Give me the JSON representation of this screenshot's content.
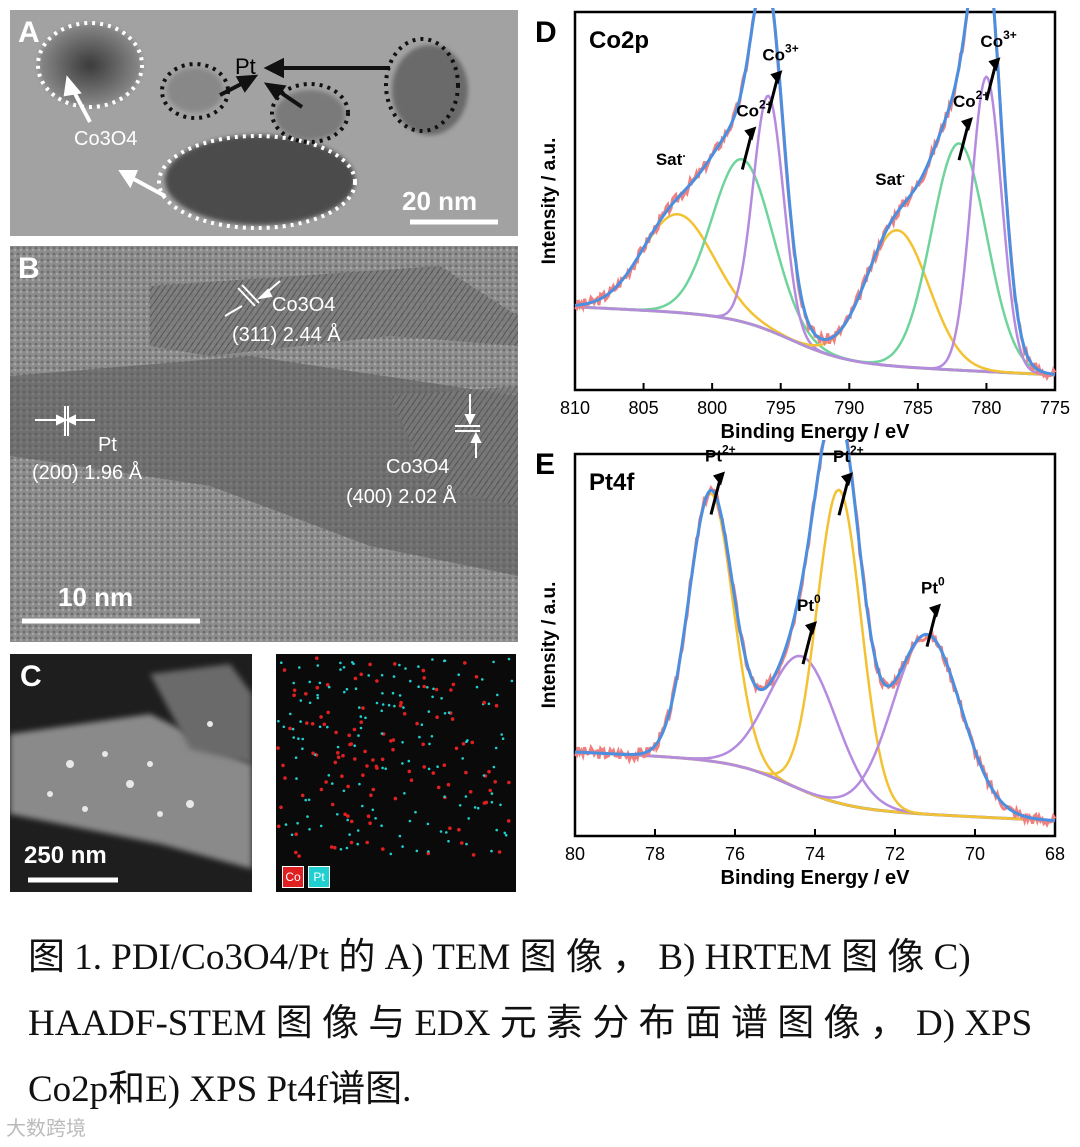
{
  "panels": {
    "A": {
      "letter": "A",
      "pt_label": "Pt",
      "co3o4_label": "Co3O4",
      "scale": "20 nm"
    },
    "B": {
      "letter": "B",
      "co3o4_a": "Co3O4",
      "co3o4_a_plane": "(311)  2.44 Å",
      "pt_label": "Pt",
      "pt_plane": "(200)  1.96 Å",
      "co3o4_b": "Co3O4",
      "co3o4_b_plane": "(400)  2.02 Å",
      "scale": "10 nm"
    },
    "C": {
      "letter": "C",
      "scale": "250 nm",
      "legend": [
        "Co",
        "Pt"
      ],
      "legend_colors": [
        "#e02020",
        "#20d0d0"
      ]
    }
  },
  "chart_data": [
    {
      "panel": "D",
      "type": "line",
      "title": "Co2p",
      "xlabel": "Binding Energy / eV",
      "ylabel": "Intensity / a.u.",
      "xlim": [
        810,
        775
      ],
      "x_ticks": [
        810,
        805,
        800,
        795,
        790,
        785,
        780,
        775
      ],
      "peaks": [
        {
          "label": "Sat.",
          "center": 802.5,
          "height": 0.26,
          "width": 2.6,
          "color": "#f3c233"
        },
        {
          "label": "Co2+",
          "center": 797.8,
          "height": 0.43,
          "width": 2.2,
          "color": "#6fd49b"
        },
        {
          "label": "Co3+",
          "center": 795.9,
          "height": 0.62,
          "width": 1.1,
          "color": "#b58be0"
        },
        {
          "label": "Sat.",
          "center": 786.5,
          "height": 0.36,
          "width": 2.3,
          "color": "#f3c233"
        },
        {
          "label": "Co2+",
          "center": 782.0,
          "height": 0.6,
          "width": 2.0,
          "color": "#6fd49b"
        },
        {
          "label": "Co3+",
          "center": 780.0,
          "height": 0.78,
          "width": 1.1,
          "color": "#b58be0"
        }
      ],
      "annotations": [
        "Sat.",
        "Co2+",
        "Co3+",
        "Sat.",
        "Co2+",
        "Co3+"
      ],
      "series_colors": {
        "raw": "#f08080",
        "envelope": "#4a8fe0",
        "background": "#888888"
      }
    },
    {
      "panel": "E",
      "type": "line",
      "title": "Pt4f",
      "xlabel": "Binding Energy / eV",
      "ylabel": "Intensity / a.u.",
      "xlim": [
        80,
        68
      ],
      "x_ticks": [
        80,
        78,
        76,
        74,
        72,
        70,
        68
      ],
      "peaks": [
        {
          "label": "Pt2+",
          "center": 76.6,
          "height": 0.7,
          "width": 0.55,
          "color": "#f3c233"
        },
        {
          "label": "Pt0",
          "center": 74.3,
          "height": 0.35,
          "width": 0.85,
          "color": "#b58be0"
        },
        {
          "label": "Pt2+",
          "center": 73.4,
          "height": 0.82,
          "width": 0.55,
          "color": "#f3c233"
        },
        {
          "label": "Pt0",
          "center": 71.2,
          "height": 0.47,
          "width": 0.85,
          "color": "#b58be0"
        }
      ],
      "annotations": [
        "Pt2+",
        "Pt0",
        "Pt2+",
        "Pt0"
      ],
      "series_colors": {
        "raw": "#f08080",
        "envelope": "#4a8fe0",
        "background": "#888888"
      }
    }
  ],
  "caption": {
    "line1": "图 1.  PDI/Co3O4/Pt 的 A)   TEM 图 像 ，  B)   HRTEM 图 像 C)",
    "line2": "HAADF-STEM 图 像 与 EDX 元 素 分 布 面 谱 图 像 ，  D)   XPS",
    "line3": "Co2p和E) XPS Pt4f谱图."
  },
  "watermark": "大数跨境"
}
